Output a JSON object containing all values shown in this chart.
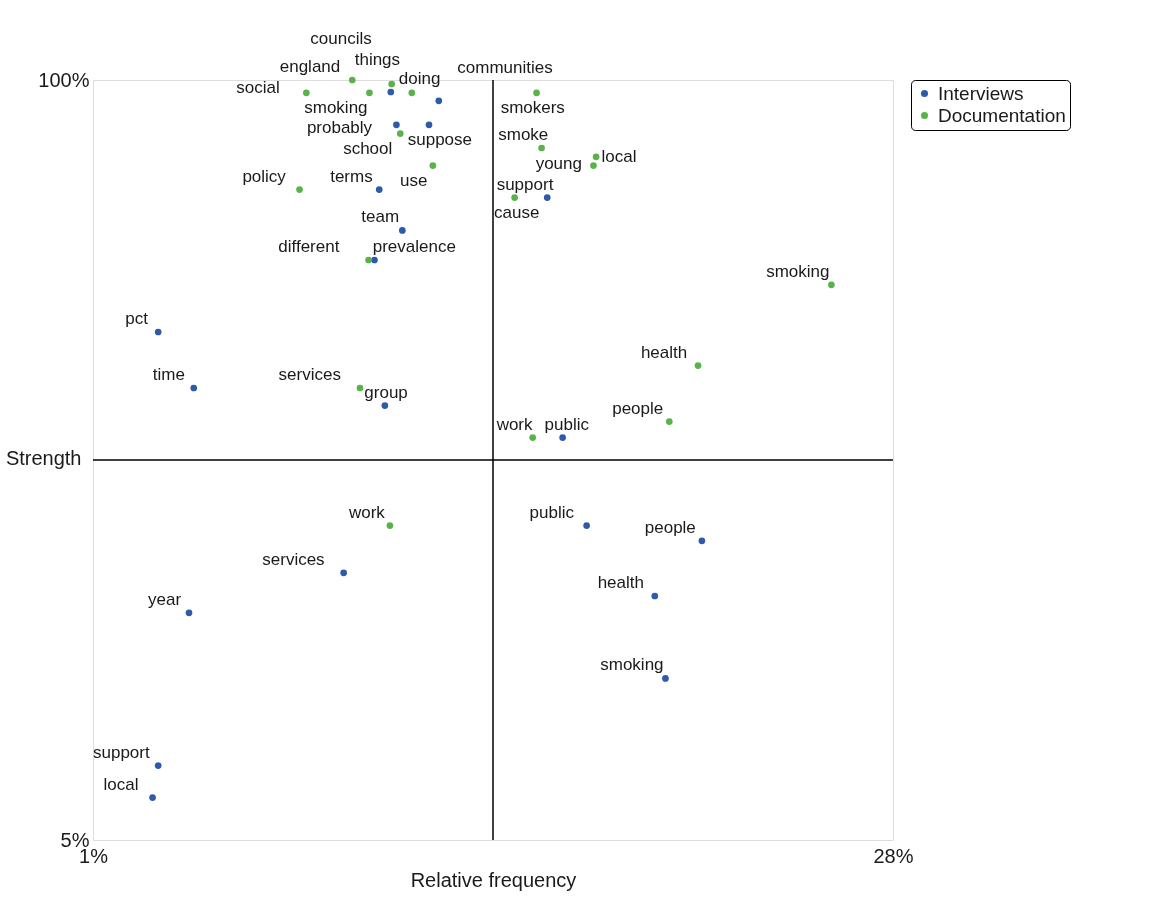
{
  "chart_data": {
    "type": "scatter",
    "xlabel": "Relative frequency",
    "ylabel": "Strength",
    "xlim": [
      1,
      28
    ],
    "ylim": [
      5,
      100
    ],
    "xticks": [
      {
        "value": 1,
        "label": "1%"
      },
      {
        "value": 28,
        "label": "28%"
      }
    ],
    "yticks": [
      {
        "value": 5,
        "label": "5%"
      },
      {
        "value": 100,
        "label": "100%"
      }
    ],
    "grid": false,
    "legend": "right",
    "marker": "circle",
    "ref_lines": [
      {
        "axis": "x",
        "value": 14.5,
        "color": "#000000"
      },
      {
        "axis": "y",
        "value": 52.5,
        "color": "#000000"
      }
    ],
    "series": [
      {
        "name": "Interviews",
        "color": "#2e5aac",
        "x": [
          11.05,
          12.67,
          11.24,
          12.34,
          10.66,
          16.33,
          11.44,
          10.5,
          3.2,
          4.4,
          10.85,
          16.85,
          17.66,
          21.55,
          9.46,
          19.96,
          4.24,
          20.32,
          3.2,
          3.01
        ],
        "values": [
          98.5,
          97.4,
          94.4,
          94.4,
          86.3,
          85.3,
          81.2,
          77.5,
          68.5,
          61.5,
          59.3,
          55.3,
          44.3,
          42.4,
          38.4,
          35.5,
          33.4,
          25.2,
          14.3,
          10.3
        ],
        "value_labels": [
          "doing",
          "communities",
          "probably",
          "suppose",
          "terms",
          "support",
          "team",
          "prevalence",
          "pct",
          "time",
          "group",
          "public",
          "public",
          "people",
          "services",
          "health",
          "year",
          "smoking",
          "support",
          "local"
        ]
      },
      {
        "name": "Documentation",
        "color": "#5ab34a",
        "x": [
          9.75,
          11.08,
          8.2,
          10.33,
          11.76,
          15.97,
          11.37,
          16.14,
          17.98,
          17.89,
          12.47,
          7.97,
          15.23,
          10.3,
          25.92,
          21.42,
          10.01,
          20.45,
          15.84,
          11.02
        ],
        "values": [
          100,
          99.5,
          98.4,
          98.4,
          98.4,
          98.4,
          93.3,
          91.5,
          90.4,
          89.3,
          89.3,
          86.3,
          85.3,
          77.5,
          74.4,
          64.3,
          61.5,
          57.3,
          55.3,
          44.3
        ],
        "value_labels": [
          "england",
          "councils",
          "social",
          "smoking",
          "things",
          "smokers",
          "school",
          "smoke",
          "young",
          "local",
          "use",
          "policy",
          "cause",
          "different",
          "smoking",
          "health",
          "services",
          "people",
          "work",
          "work"
        ]
      }
    ]
  }
}
